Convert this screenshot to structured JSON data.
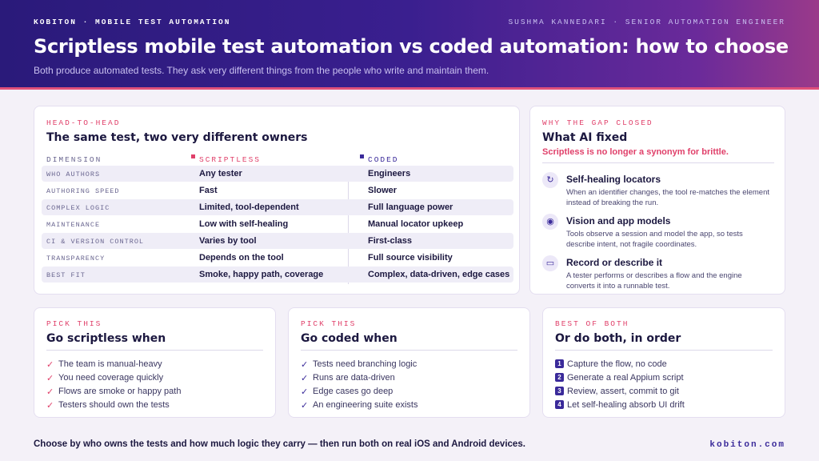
{
  "header": {
    "eyebrow": "KOBITON · MOBILE TEST AUTOMATION",
    "author": "SUSHMA KANNEDARI · SENIOR AUTOMATION ENGINEER",
    "title": "Scriptless mobile test automation vs coded automation: how to choose",
    "subtitle": "Both produce automated tests. They ask very different things from the people who write and maintain them."
  },
  "comparison": {
    "eyebrow": "HEAD-TO-HEAD",
    "title": "The same test, two very different owners",
    "columns": [
      "DIMENSION",
      "SCRIPTLESS",
      "CODED"
    ],
    "rows": [
      [
        "WHO AUTHORS",
        "Any tester",
        "Engineers"
      ],
      [
        "AUTHORING SPEED",
        "Fast",
        "Slower"
      ],
      [
        "COMPLEX LOGIC",
        "Limited, tool-dependent",
        "Full language power"
      ],
      [
        "MAINTENANCE",
        "Low with self-healing",
        "Manual locator upkeep"
      ],
      [
        "CI & VERSION CONTROL",
        "Varies by tool",
        "First-class"
      ],
      [
        "TRANSPARENCY",
        "Depends on the tool",
        "Full source visibility"
      ],
      [
        "BEST FIT",
        "Smoke, happy path, coverage",
        "Complex, data-driven, edge cases"
      ]
    ]
  },
  "ai": {
    "eyebrow": "WHY THE GAP CLOSED",
    "title": "What AI fixed",
    "subtitle": "Scriptless is no longer a synonym for brittle.",
    "items": [
      {
        "title": "Self-healing locators",
        "text": "When an identifier changes, the tool re-matches the element instead of breaking the run."
      },
      {
        "title": "Vision and app models",
        "text": "Tools observe a session and model the app, so tests describe intent, not fragile coordinates."
      },
      {
        "title": "Record or describe it",
        "text": "A tester performs or describes a flow and the engine converts it into a runnable test."
      }
    ]
  },
  "cards": [
    {
      "eyebrow": "PICK THIS",
      "title": "Go scriptless when",
      "items": [
        "The team is manual-heavy",
        "You need coverage quickly",
        "Flows are smoke or happy path",
        "Testers should own the tests"
      ]
    },
    {
      "eyebrow": "PICK THIS",
      "title": "Go coded when",
      "items": [
        "Tests need branching logic",
        "Runs are data-driven",
        "Edge cases go deep",
        "An engineering suite exists"
      ]
    },
    {
      "eyebrow": "BEST OF BOTH",
      "title": "Or do both, in order",
      "items": [
        {
          "number": 1,
          "text": "Capture the flow, no code"
        },
        {
          "number": 2,
          "text": "Generate a real Appium script"
        },
        {
          "number": 3,
          "text": "Review, assert, commit to git"
        },
        {
          "number": 4,
          "text": "Let self-healing absorb UI drift"
        }
      ]
    }
  ],
  "footer": {
    "text": "Choose by who owns the tests and how much logic they carry — then run both on real iOS and Android devices.",
    "brand": "kobiton.com"
  }
}
